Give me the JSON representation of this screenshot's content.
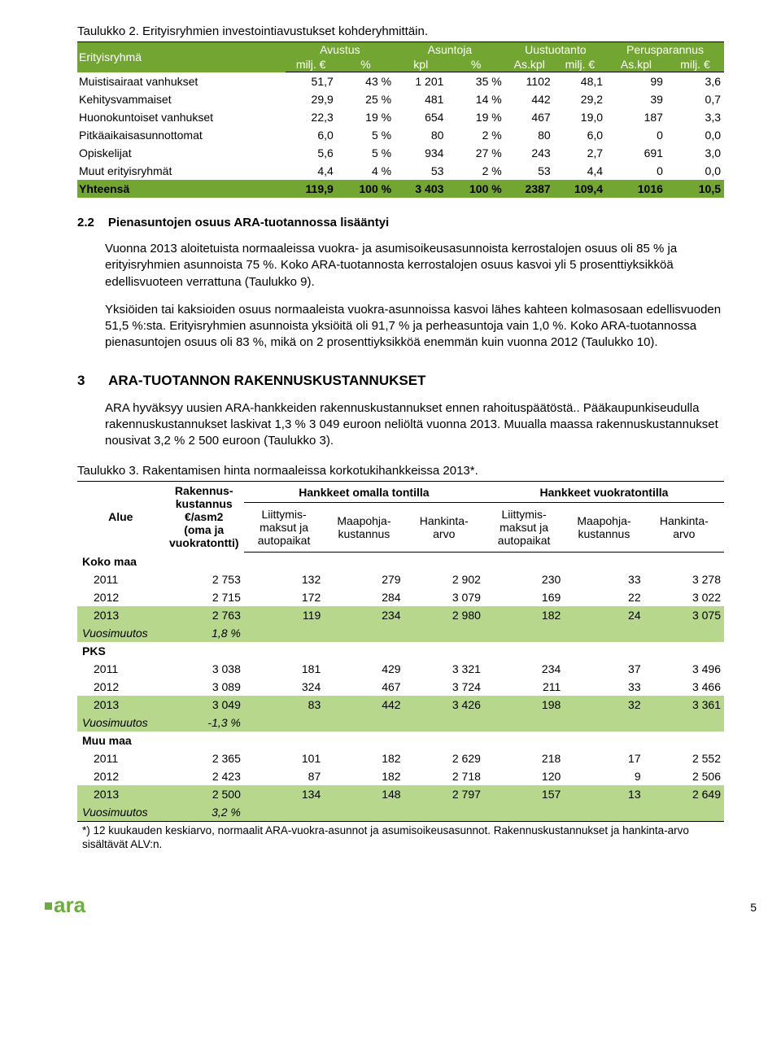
{
  "t1": {
    "caption": "Taulukko 2. Erityisryhmien investointiavustukset kohderyhmittäin.",
    "group_header_bg": "#73a533",
    "header_labels": {
      "c0": "Erityisryhmä",
      "g1": "Avustus",
      "g1a": "milj. €",
      "g1b": "%",
      "g2": "Asuntoja",
      "g2a": "kpl",
      "g2b": "%",
      "g3": "Uustuotanto",
      "g3a": "As.kpl",
      "g3b": "milj. €",
      "g4": "Perusparannus",
      "g4a": "As.kpl",
      "g4b": "milj. €"
    },
    "rows": [
      {
        "label": "Muistisairaat vanhukset",
        "c": [
          "51,7",
          "43 %",
          "1 201",
          "35 %",
          "1102",
          "48,1",
          "99",
          "3,6"
        ]
      },
      {
        "label": "Kehitysvammaiset",
        "c": [
          "29,9",
          "25 %",
          "481",
          "14 %",
          "442",
          "29,2",
          "39",
          "0,7"
        ]
      },
      {
        "label": "Huonokuntoiset vanhukset",
        "c": [
          "22,3",
          "19 %",
          "654",
          "19 %",
          "467",
          "19,0",
          "187",
          "3,3"
        ]
      },
      {
        "label": "Pitkäaikaisasunnottomat",
        "c": [
          "6,0",
          "5 %",
          "80",
          "2 %",
          "80",
          "6,0",
          "0",
          "0,0"
        ]
      },
      {
        "label": "Opiskelijat",
        "c": [
          "5,6",
          "5 %",
          "934",
          "27 %",
          "243",
          "2,7",
          "691",
          "3,0"
        ]
      },
      {
        "label": "Muut erityisryhmät",
        "c": [
          "4,4",
          "4 %",
          "53",
          "2 %",
          "53",
          "4,4",
          "0",
          "0,0"
        ]
      }
    ],
    "total": {
      "label": "Yhteensä",
      "c": [
        "119,9",
        "100 %",
        "3 403",
        "100 %",
        "2387",
        "109,4",
        "1016",
        "10,5"
      ]
    }
  },
  "sec22": {
    "num": "2.2",
    "title": "Pienasuntojen osuus ARA-tuotannossa lisääntyi",
    "p1": "Vuonna 2013 aloitetuista normaaleissa vuokra- ja asumisoikeusasunnoista kerrostalojen osuus oli 85 % ja erityisryhmien asunnoista 75 %. Koko ARA-tuotannosta kerrostalojen osuus kasvoi yli 5 prosenttiyksikköä edellisvuoteen verrattuna (Taulukko 9).",
    "p2": "Yksiöiden tai kaksioiden osuus normaaleista vuokra-asunnoissa kasvoi lähes kahteen kolmasosaan edellisvuoden 51,5 %:sta. Erityisryhmien asunnoista yksiöitä oli 91,7 % ja perheasuntoja vain 1,0 %. Koko ARA-tuotannossa pienasuntojen osuus oli 83 %, mikä on 2 prosenttiyksikköä enemmän kuin vuonna 2012 (Taulukko 10)."
  },
  "sec3": {
    "num": "3",
    "title": "ARA-TUOTANNON RAKENNUSKUSTANNUKSET",
    "p1": "ARA hyväksyy uusien ARA-hankkeiden rakennuskustannukset ennen rahoituspäätöstä.. Pääkaupunkiseudulla rakennuskustannukset laskivat 1,3 % 3 049 euroon neliöltä vuonna 2013. Muualla maassa rakennuskustannukset nousivat 3,2 % 2 500 euroon (Taulukko 3)."
  },
  "t3": {
    "caption": "Taulukko 3. Rakentamisen hinta normaaleissa korkotukihankkeissa 2013*.",
    "headers": {
      "alue": "Alue",
      "rakennus": "Rakennus-\nkustannus\n€/asm2\n(oma ja\nvuokratontti)",
      "g_oma": "Hankkeet omalla tontilla",
      "g_vuokra": "Hankkeet vuokratontilla",
      "liit": "Liittymis-\nmaksut ja\nautopaikat",
      "maa": "Maapohja-\nkustannus",
      "hank": "Hankinta-\narvo"
    },
    "sections": [
      {
        "title": "Koko maa",
        "rows": [
          {
            "y": "2011",
            "v": [
              "2 753",
              "132",
              "279",
              "2 902",
              "230",
              "33",
              "3 278"
            ]
          },
          {
            "y": "2012",
            "v": [
              "2 715",
              "172",
              "284",
              "3 079",
              "169",
              "22",
              "3 022"
            ]
          },
          {
            "y": "2013",
            "v": [
              "2 763",
              "119",
              "234",
              "2 980",
              "182",
              "24",
              "3 075"
            ],
            "hl": true
          }
        ],
        "change": {
          "label": "Vuosimuutos",
          "v": "1,8 %",
          "hl": true
        }
      },
      {
        "title": "PKS",
        "rows": [
          {
            "y": "2011",
            "v": [
              "3 038",
              "181",
              "429",
              "3 321",
              "234",
              "37",
              "3 496"
            ]
          },
          {
            "y": "2012",
            "v": [
              "3 089",
              "324",
              "467",
              "3 724",
              "211",
              "33",
              "3 466"
            ]
          },
          {
            "y": "2013",
            "v": [
              "3 049",
              "83",
              "442",
              "3 426",
              "198",
              "32",
              "3 361"
            ],
            "hl": true
          }
        ],
        "change": {
          "label": "Vuosimuutos",
          "v": "-1,3 %",
          "hl": true
        }
      },
      {
        "title": "Muu maa",
        "rows": [
          {
            "y": "2011",
            "v": [
              "2 365",
              "101",
              "182",
              "2 629",
              "218",
              "17",
              "2 552"
            ]
          },
          {
            "y": "2012",
            "v": [
              "2 423",
              "87",
              "182",
              "2 718",
              "120",
              "9",
              "2 506"
            ]
          },
          {
            "y": "2013",
            "v": [
              "2 500",
              "134",
              "148",
              "2 797",
              "157",
              "13",
              "2 649"
            ],
            "hl": true
          }
        ],
        "change": {
          "label": "Vuosimuutos",
          "v": "3,2 %",
          "hl": true
        }
      }
    ],
    "footnote": "*) 12 kuukauden keskiarvo, normaalit ARA-vuokra-asunnot ja asumisoikeusasunnot. Rakennuskustannukset ja hankinta-arvo sisältävät ALV:n."
  },
  "page_number": "5",
  "logo_text": "ara"
}
